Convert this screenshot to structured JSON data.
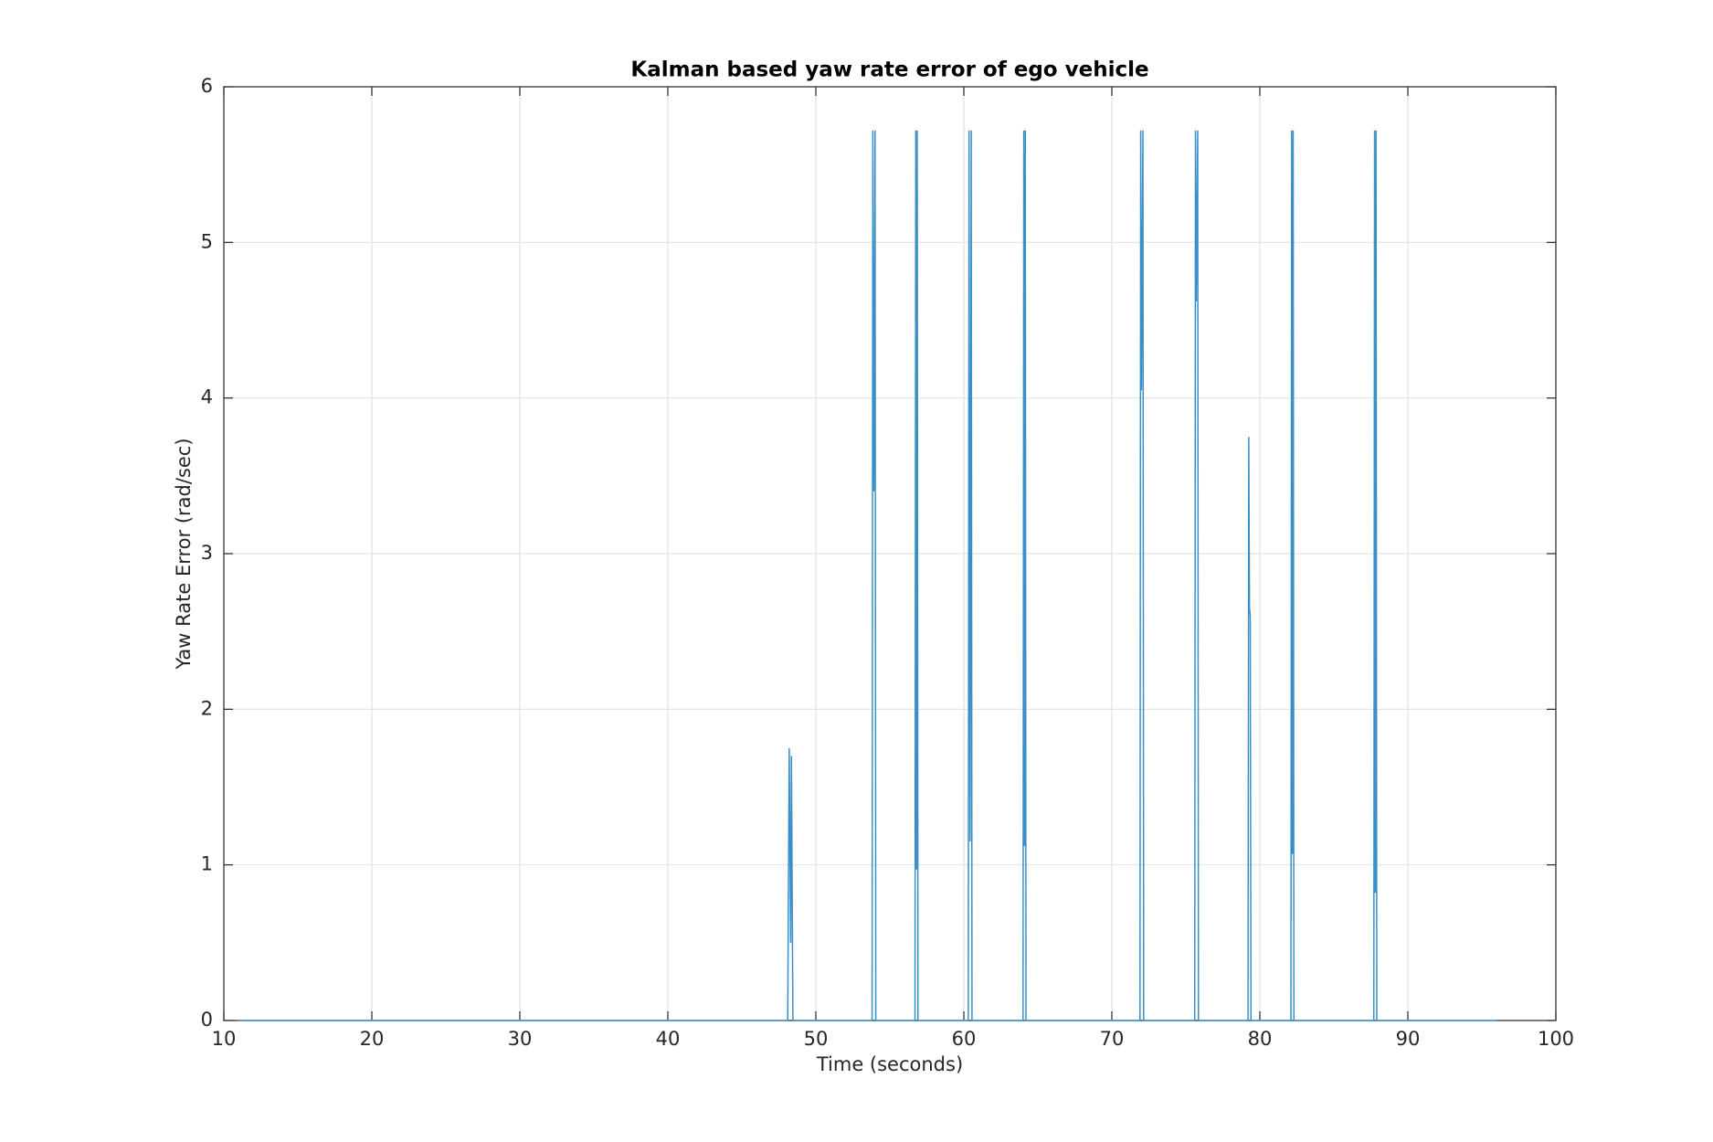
{
  "chart_data": {
    "type": "line",
    "title": "Kalman based yaw rate error of ego vehicle",
    "x_label": "Time (seconds)",
    "y_label": "Yaw Rate Error (rad/sec)",
    "xlim": [
      10,
      100
    ],
    "xticks": [
      10,
      20,
      30,
      40,
      50,
      60,
      70,
      80,
      90,
      100
    ],
    "ylim": [
      0,
      6
    ],
    "yticks": [
      0,
      1,
      2,
      3,
      4,
      5,
      6
    ],
    "grid": true,
    "series": [
      {
        "color": "#3a8fc8",
        "x": [
          11,
          48.1,
          48.2,
          48.3,
          48.35,
          48.45,
          53.8,
          53.85,
          53.92,
          54.0,
          54.05,
          56.7,
          56.75,
          56.8,
          56.85,
          56.9,
          60.3,
          60.35,
          60.42,
          60.5,
          60.55,
          64.0,
          64.05,
          64.1,
          64.15,
          64.2,
          71.9,
          71.95,
          72.0,
          72.1,
          72.15,
          75.6,
          75.65,
          75.7,
          75.8,
          75.85,
          79.2,
          79.25,
          79.3,
          79.35,
          79.4,
          82.1,
          82.15,
          82.2,
          82.25,
          82.3,
          87.7,
          87.75,
          87.8,
          87.85,
          87.9,
          96
        ],
        "values": [
          0,
          0,
          1.75,
          0.5,
          1.7,
          0,
          0,
          5.72,
          3.4,
          5.72,
          0,
          0,
          5.72,
          0.97,
          5.72,
          0,
          0,
          5.72,
          1.15,
          5.72,
          0,
          0,
          5.72,
          1.12,
          5.72,
          0,
          0,
          5.72,
          4.05,
          5.72,
          0,
          0,
          5.72,
          4.62,
          5.72,
          0,
          0,
          3.75,
          2.65,
          2.6,
          0,
          0,
          5.72,
          1.07,
          5.72,
          0,
          0,
          5.72,
          0.82,
          5.72,
          0,
          0
        ]
      }
    ]
  }
}
